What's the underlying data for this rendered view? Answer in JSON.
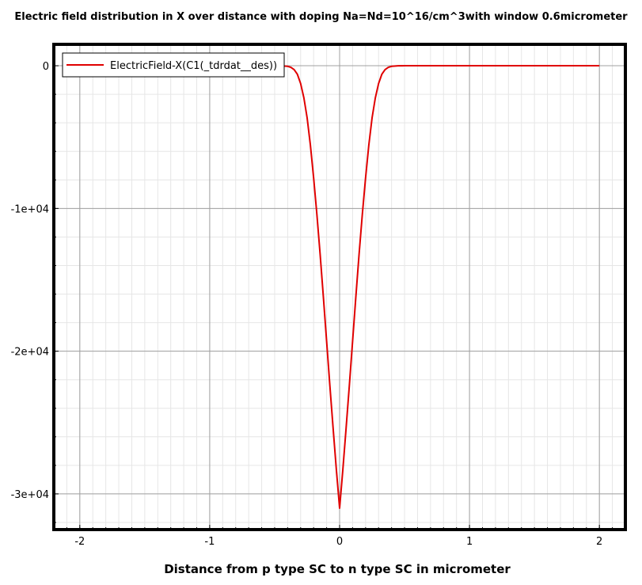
{
  "chart_data": {
    "type": "line",
    "title": "Electric field distribution in X over distance with doping Na=Nd=10^16/cm^3with window 0.6micrometer",
    "xlabel": "Distance from p type SC to n type SC in micrometer",
    "ylabel": "",
    "xlim": [
      -2.2,
      2.2
    ],
    "ylim": [
      -32500,
      1500
    ],
    "x_ticks": [
      -2,
      -1,
      0,
      1,
      2
    ],
    "x_tick_labels": [
      "-2",
      "-1",
      "0",
      "1",
      "2"
    ],
    "y_ticks": [
      0,
      -10000,
      -20000,
      -30000
    ],
    "y_tick_labels": [
      "0",
      "-1e+04",
      "-2e+04",
      "-3e+04"
    ],
    "grid": true,
    "legend": {
      "position": "top-left",
      "entries": [
        "ElectricField-X(C1(_tdrdat__des))"
      ]
    },
    "colors": {
      "series": "#e00000",
      "frame": "#000000",
      "major_grid": "#a0a0a0",
      "minor_grid": "#e6e6e6"
    },
    "series": [
      {
        "name": "ElectricField-X(C1(_tdrdat__des))",
        "x": [
          -2.0,
          -0.6,
          -0.5,
          -0.45,
          -0.4,
          -0.375,
          -0.35,
          -0.325,
          -0.3,
          -0.275,
          -0.25,
          -0.225,
          -0.2,
          -0.175,
          -0.15,
          -0.125,
          -0.1,
          -0.075,
          -0.05,
          -0.025,
          0.0,
          0.025,
          0.05,
          0.075,
          0.1,
          0.125,
          0.15,
          0.175,
          0.2,
          0.225,
          0.25,
          0.275,
          0.3,
          0.325,
          0.35,
          0.375,
          0.4,
          0.45,
          0.5,
          0.6,
          2.0
        ],
        "y": [
          0,
          0,
          0,
          -5,
          -40,
          -110,
          -270,
          -600,
          -1250,
          -2250,
          -3650,
          -5550,
          -7850,
          -10400,
          -13200,
          -16200,
          -19300,
          -22400,
          -25400,
          -28300,
          -31000,
          -28300,
          -25400,
          -22400,
          -19300,
          -16200,
          -13200,
          -10400,
          -7850,
          -5550,
          -3650,
          -2250,
          -1250,
          -600,
          -270,
          -110,
          -40,
          -5,
          0,
          0,
          0
        ]
      }
    ]
  }
}
